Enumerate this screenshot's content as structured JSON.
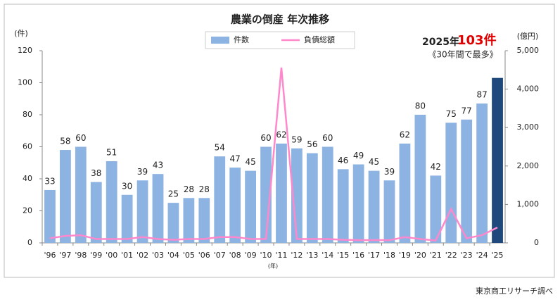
{
  "chart_data": {
    "type": "bar",
    "title": "農業の倒産 年次推移",
    "categories": [
      "'96",
      "'97",
      "'98",
      "'99",
      "'00",
      "'01",
      "'02",
      "'03",
      "'04",
      "'05",
      "'06",
      "'07",
      "'08",
      "'09",
      "'10",
      "'11",
      "'12",
      "'13",
      "'14",
      "'15",
      "'16",
      "'17",
      "'18",
      "'19",
      "'20",
      "'21",
      "'22",
      "'23",
      "'24",
      "'25"
    ],
    "series": [
      {
        "name": "件数",
        "color": "#8db3e2",
        "colors": [
          "#8db3e2",
          "#8db3e2",
          "#8db3e2",
          "#8db3e2",
          "#8db3e2",
          "#8db3e2",
          "#8db3e2",
          "#8db3e2",
          "#8db3e2",
          "#8db3e2",
          "#8db3e2",
          "#8db3e2",
          "#8db3e2",
          "#8db3e2",
          "#8db3e2",
          "#8db3e2",
          "#8db3e2",
          "#8db3e2",
          "#8db3e2",
          "#8db3e2",
          "#8db3e2",
          "#8db3e2",
          "#8db3e2",
          "#8db3e2",
          "#8db3e2",
          "#8db3e2",
          "#8db3e2",
          "#8db3e2",
          "#8db3e2",
          "#1f497d"
        ],
        "values": [
          33,
          58,
          60,
          38,
          51,
          30,
          39,
          43,
          25,
          28,
          28,
          54,
          47,
          45,
          60,
          62,
          59,
          56,
          60,
          46,
          49,
          45,
          39,
          62,
          80,
          42,
          75,
          77,
          87,
          103
        ]
      },
      {
        "name": "負債総額",
        "color": "#ff88cc",
        "axis": "y2",
        "type": "line",
        "values": [
          120,
          180,
          200,
          100,
          100,
          100,
          150,
          100,
          80,
          100,
          100,
          150,
          150,
          100,
          100,
          4560,
          100,
          100,
          100,
          80,
          70,
          70,
          70,
          150,
          100,
          60,
          880,
          120,
          200,
          400
        ]
      }
    ],
    "ylim": [
      0,
      120
    ],
    "yticks": [
      0,
      20,
      40,
      60,
      80,
      100,
      120
    ],
    "y2lim": [
      0,
      5000
    ],
    "y2ticks": [
      0,
      {
        "value": 1000,
        "label": "1,000"
      },
      {
        "value": 2000,
        "label": "2,000"
      },
      {
        "value": 3000,
        "label": "3,000"
      },
      {
        "value": 4000,
        "label": "4,000"
      },
      {
        "value": 5000,
        "label": "5,000"
      }
    ],
    "y_unit": "(件)",
    "y2_unit": "(億円)",
    "x_unit": "(年)",
    "annotation": {
      "prefix": "2025年",
      "highlight": "103件",
      "note": "《30年間で最多》"
    },
    "source": "東京商工リサーチ調べ"
  }
}
